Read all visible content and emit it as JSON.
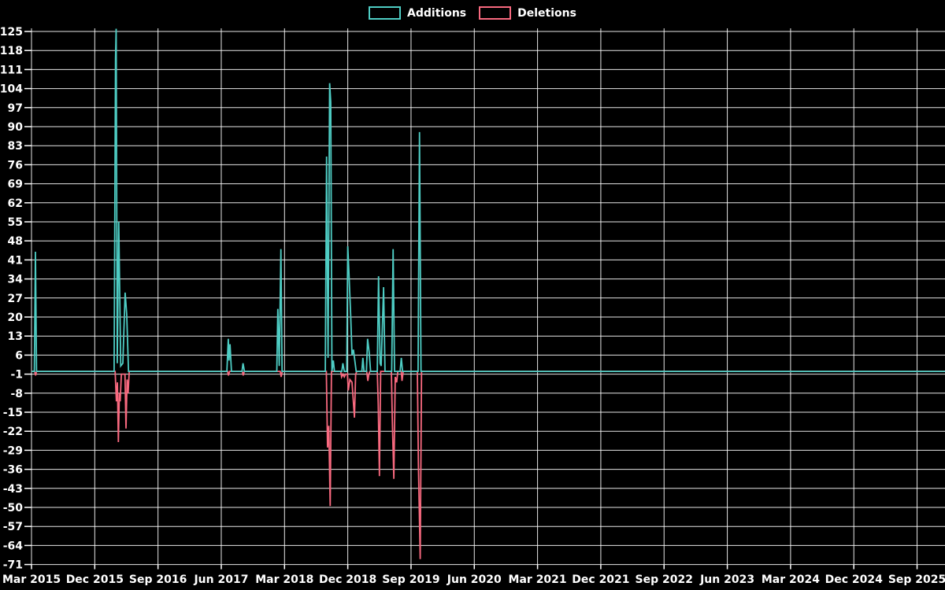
{
  "legend": {
    "items": [
      {
        "label": "Additions",
        "color": "#4ECDC4"
      },
      {
        "label": "Deletions",
        "color": "#F8697F"
      }
    ]
  },
  "colors": {
    "background": "#000000",
    "grid": "#FFFFFF",
    "text": "#FFFFFF",
    "additions": "#4ECDC4",
    "deletions": "#F8697F"
  },
  "chart_data": {
    "type": "line",
    "title": "",
    "xlabel": "",
    "ylabel": "",
    "grid": true,
    "legend_position": "top-center",
    "x_axis": {
      "tick_labels": [
        "Mar 2015",
        "Dec 2015",
        "Sep 2016",
        "Jun 2017",
        "Mar 2018",
        "Dec 2018",
        "Sep 2019",
        "Jun 2020",
        "Mar 2021",
        "Dec 2021",
        "Sep 2022",
        "Jun 2023",
        "Mar 2024",
        "Dec 2024",
        "Sep 2025"
      ],
      "months_between_labels": 9,
      "timeline_months_total": 130.6
    },
    "y_axis": {
      "max": 125,
      "min": -71,
      "tick_step": 7,
      "tick_labels": [
        125,
        118,
        111,
        104,
        97,
        90,
        83,
        76,
        69,
        62,
        55,
        48,
        41,
        34,
        27,
        20,
        13,
        6,
        -1,
        -8,
        -15,
        -22,
        -29,
        -36,
        -43,
        -50,
        -57,
        -64,
        -71
      ]
    },
    "series": [
      {
        "name": "Additions",
        "color": "#4ECDC4",
        "points": [
          [
            0,
            0
          ],
          [
            0.4,
            0
          ],
          [
            0.56,
            44
          ],
          [
            0.72,
            0
          ],
          [
            11.75,
            0
          ],
          [
            11.95,
            115
          ],
          [
            12.05,
            126
          ],
          [
            12.2,
            3
          ],
          [
            12.42,
            55
          ],
          [
            12.7,
            2
          ],
          [
            13.0,
            3
          ],
          [
            13.32,
            29
          ],
          [
            13.55,
            21
          ],
          [
            13.8,
            0
          ],
          [
            27.8,
            0
          ],
          [
            28.0,
            12
          ],
          [
            28.1,
            4
          ],
          [
            28.25,
            10
          ],
          [
            28.45,
            0
          ],
          [
            29.95,
            0
          ],
          [
            30.1,
            3
          ],
          [
            30.3,
            0
          ],
          [
            34.9,
            0
          ],
          [
            35.05,
            23
          ],
          [
            35.25,
            2
          ],
          [
            35.48,
            45
          ],
          [
            35.65,
            0
          ],
          [
            41.8,
            0
          ],
          [
            41.98,
            79
          ],
          [
            42.2,
            5
          ],
          [
            42.42,
            106
          ],
          [
            42.58,
            99
          ],
          [
            42.75,
            0
          ],
          [
            42.95,
            4
          ],
          [
            43.1,
            0
          ],
          [
            44.15,
            0
          ],
          [
            44.3,
            3
          ],
          [
            44.5,
            0
          ],
          [
            44.85,
            0
          ],
          [
            45.0,
            46
          ],
          [
            45.15,
            37
          ],
          [
            45.42,
            20
          ],
          [
            45.6,
            6
          ],
          [
            45.8,
            8
          ],
          [
            46.05,
            3
          ],
          [
            46.2,
            0
          ],
          [
            47.0,
            0
          ],
          [
            47.15,
            5
          ],
          [
            47.3,
            0
          ],
          [
            47.65,
            0
          ],
          [
            47.82,
            12
          ],
          [
            48.05,
            7
          ],
          [
            48.25,
            0
          ],
          [
            49.2,
            0
          ],
          [
            49.38,
            35
          ],
          [
            49.6,
            3
          ],
          [
            49.75,
            2
          ],
          [
            50.1,
            31
          ],
          [
            50.3,
            0
          ],
          [
            51.25,
            0
          ],
          [
            51.45,
            45
          ],
          [
            51.65,
            0
          ],
          [
            52.45,
            0
          ],
          [
            52.62,
            5
          ],
          [
            52.8,
            0
          ],
          [
            55.0,
            0
          ],
          [
            55.2,
            88
          ],
          [
            55.42,
            0
          ],
          [
            130.6,
            0
          ]
        ]
      },
      {
        "name": "Deletions",
        "color": "#F8697F",
        "points": [
          [
            0,
            0
          ],
          [
            0.45,
            0
          ],
          [
            0.58,
            -1.5
          ],
          [
            0.72,
            0
          ],
          [
            11.9,
            0
          ],
          [
            12.08,
            -11
          ],
          [
            12.22,
            -4
          ],
          [
            12.36,
            -26
          ],
          [
            12.5,
            -8
          ],
          [
            12.62,
            -11
          ],
          [
            12.78,
            -1
          ],
          [
            13.3,
            -1
          ],
          [
            13.45,
            -21
          ],
          [
            13.6,
            -3
          ],
          [
            13.75,
            -8
          ],
          [
            13.9,
            0
          ],
          [
            27.9,
            0
          ],
          [
            28.02,
            -1.5
          ],
          [
            28.18,
            0
          ],
          [
            30.0,
            0
          ],
          [
            30.12,
            -1.5
          ],
          [
            30.28,
            0
          ],
          [
            35.4,
            0
          ],
          [
            35.52,
            -2
          ],
          [
            35.68,
            0
          ],
          [
            41.95,
            0
          ],
          [
            42.12,
            -28
          ],
          [
            42.3,
            -20
          ],
          [
            42.5,
            -49.5
          ],
          [
            42.68,
            0
          ],
          [
            44.0,
            0
          ],
          [
            44.12,
            -2
          ],
          [
            44.3,
            -1
          ],
          [
            44.5,
            -2
          ],
          [
            44.7,
            -1
          ],
          [
            44.95,
            -1
          ],
          [
            45.08,
            -7
          ],
          [
            45.3,
            -3
          ],
          [
            45.6,
            -4
          ],
          [
            45.95,
            -17
          ],
          [
            46.12,
            -1
          ],
          [
            46.3,
            0
          ],
          [
            47.7,
            0
          ],
          [
            47.85,
            -3.5
          ],
          [
            48.0,
            -1
          ],
          [
            48.15,
            0
          ],
          [
            49.2,
            0
          ],
          [
            49.33,
            -12
          ],
          [
            49.5,
            -38.5
          ],
          [
            49.68,
            0
          ],
          [
            51.2,
            0
          ],
          [
            51.33,
            -17
          ],
          [
            51.55,
            -39.5
          ],
          [
            51.75,
            -2
          ],
          [
            51.95,
            -4
          ],
          [
            52.12,
            0
          ],
          [
            52.6,
            0
          ],
          [
            52.72,
            -3.5
          ],
          [
            52.88,
            0
          ],
          [
            54.9,
            0
          ],
          [
            55.05,
            -34
          ],
          [
            55.3,
            -69
          ],
          [
            55.5,
            0
          ],
          [
            130.6,
            0
          ]
        ]
      }
    ]
  }
}
